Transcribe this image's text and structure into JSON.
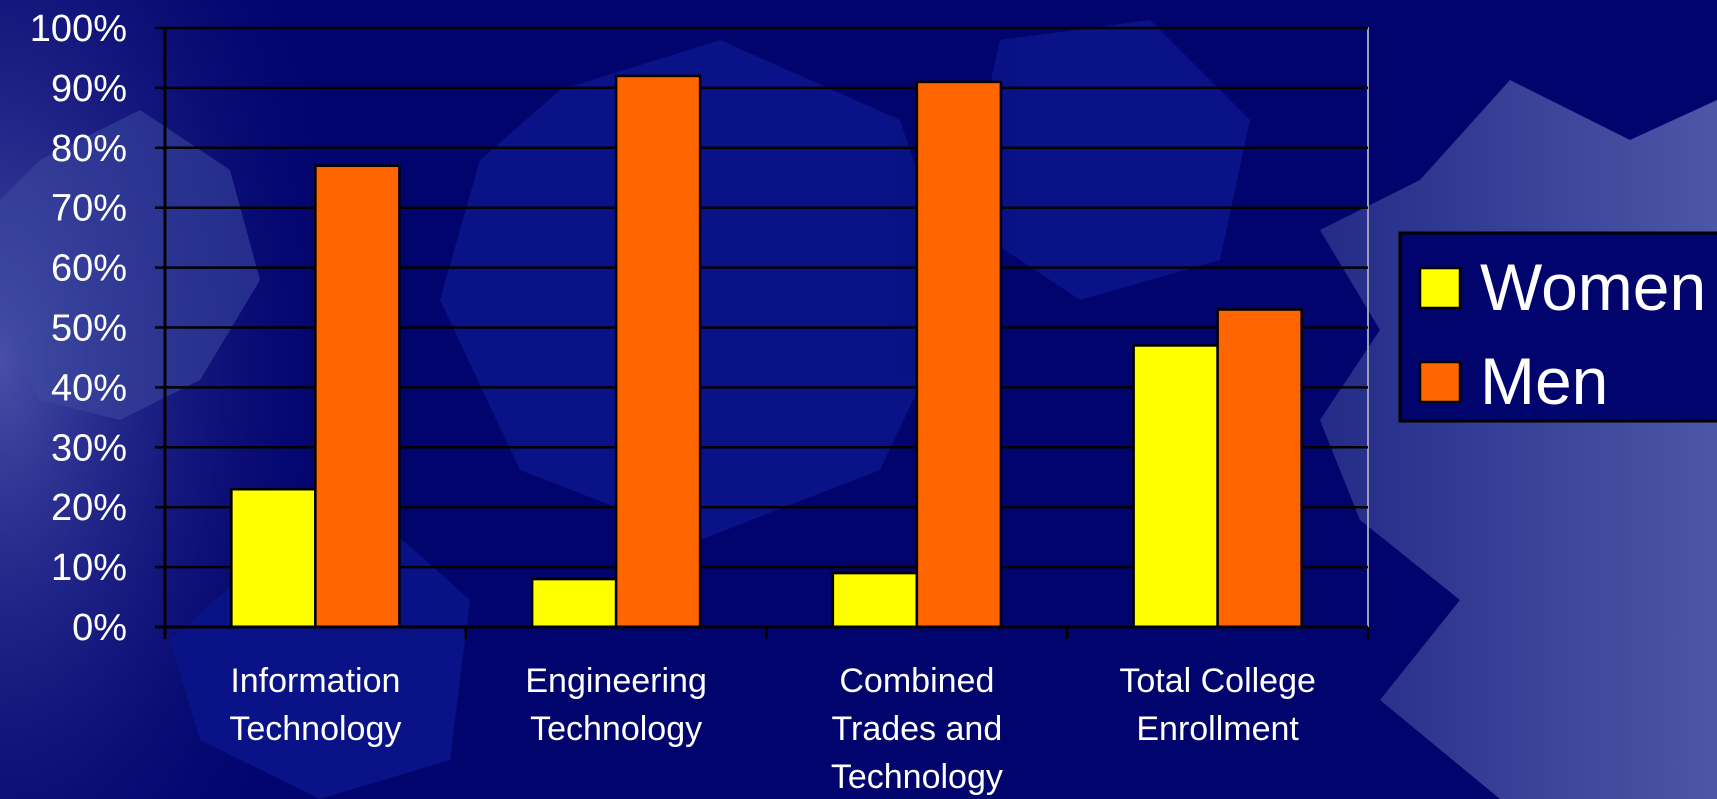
{
  "chart_data": {
    "type": "bar",
    "categories": [
      [
        "Information",
        "Technology"
      ],
      [
        "Engineering",
        "Technology"
      ],
      [
        "Combined",
        "Trades and",
        "Technology"
      ],
      [
        "Total College",
        "Enrollment"
      ]
    ],
    "series": [
      {
        "name": "Women",
        "color": "#ffff00",
        "values": [
          23,
          8,
          9,
          47
        ]
      },
      {
        "name": "Men",
        "color": "#ff6600",
        "values": [
          77,
          92,
          91,
          53
        ]
      }
    ],
    "y_ticks": [
      "0%",
      "10%",
      "20%",
      "30%",
      "40%",
      "50%",
      "60%",
      "70%",
      "80%",
      "90%",
      "100%"
    ],
    "ylim": [
      0,
      100
    ],
    "grid": true,
    "legend": "right",
    "colors": {
      "background": "#02046e",
      "gear": "#4a5aa8",
      "gridline": "#000000",
      "text": "#ffffff"
    }
  }
}
